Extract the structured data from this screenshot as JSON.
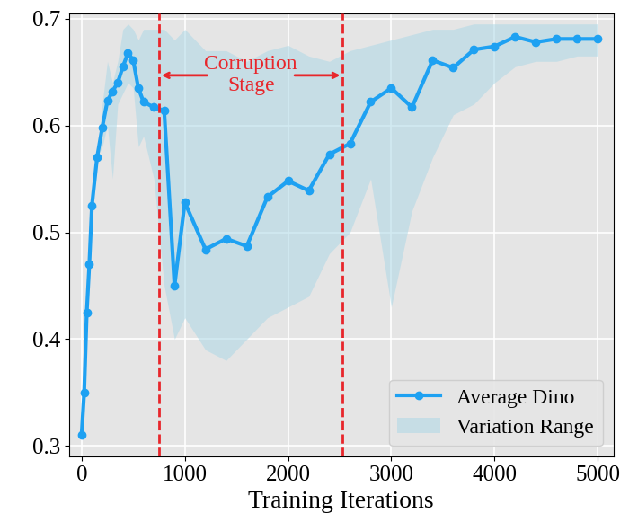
{
  "chart_data": {
    "type": "line",
    "xlabel": "Training Iterations",
    "x": [
      0,
      25,
      50,
      75,
      100,
      150,
      200,
      250,
      300,
      350,
      400,
      450,
      500,
      550,
      600,
      700,
      800,
      900,
      1000,
      1200,
      1400,
      1600,
      1800,
      2000,
      2200,
      2400,
      2600,
      2800,
      3000,
      3200,
      3400,
      3600,
      3800,
      4000,
      4200,
      4400,
      4600,
      4800,
      5000
    ],
    "series": [
      {
        "name": "Average Dino",
        "type": "line",
        "color": "#1ea1f2",
        "marker": "o",
        "line_style": "solid",
        "values": [
          0.31,
          0.35,
          0.425,
          0.47,
          0.525,
          0.57,
          0.598,
          0.623,
          0.632,
          0.64,
          0.655,
          0.668,
          0.661,
          0.635,
          0.622,
          0.617,
          0.614,
          0.45,
          0.528,
          0.484,
          0.494,
          0.487,
          0.533,
          0.548,
          0.539,
          0.573,
          0.583,
          0.622,
          0.635,
          0.617,
          0.661,
          0.654,
          0.671,
          0.674,
          0.683,
          0.678,
          0.681,
          0.681,
          0.681
        ]
      },
      {
        "name": "Variation Range",
        "type": "area",
        "color": "#add8e6",
        "lower": [
          0.31,
          0.35,
          0.425,
          0.47,
          0.525,
          0.57,
          0.58,
          0.6,
          0.55,
          0.62,
          0.63,
          0.64,
          0.635,
          0.58,
          0.59,
          0.55,
          0.45,
          0.4,
          0.42,
          0.39,
          0.38,
          0.4,
          0.42,
          0.43,
          0.44,
          0.48,
          0.5,
          0.55,
          0.43,
          0.52,
          0.57,
          0.61,
          0.62,
          0.64,
          0.655,
          0.66,
          0.66,
          0.665,
          0.665
        ],
        "upper": [
          0.31,
          0.35,
          0.425,
          0.47,
          0.525,
          0.57,
          0.62,
          0.66,
          0.64,
          0.66,
          0.69,
          0.695,
          0.69,
          0.68,
          0.69,
          0.69,
          0.69,
          0.68,
          0.69,
          0.67,
          0.67,
          0.66,
          0.67,
          0.675,
          0.665,
          0.66,
          0.67,
          0.675,
          0.68,
          0.685,
          0.69,
          0.69,
          0.695,
          0.695,
          0.695,
          0.695,
          0.695,
          0.695,
          0.695
        ]
      }
    ],
    "vlines": [
      750,
      2530
    ],
    "vline_color": "#e8262b",
    "annotation": "Corruption\nStage",
    "xlim": [
      -120,
      5150
    ],
    "ylim": [
      0.29,
      0.705
    ],
    "xticks": [
      0,
      1000,
      2000,
      3000,
      4000,
      5000
    ],
    "yticks": [
      0.3,
      0.4,
      0.5,
      0.6,
      0.7
    ],
    "grid": true,
    "legend": "lower right"
  }
}
